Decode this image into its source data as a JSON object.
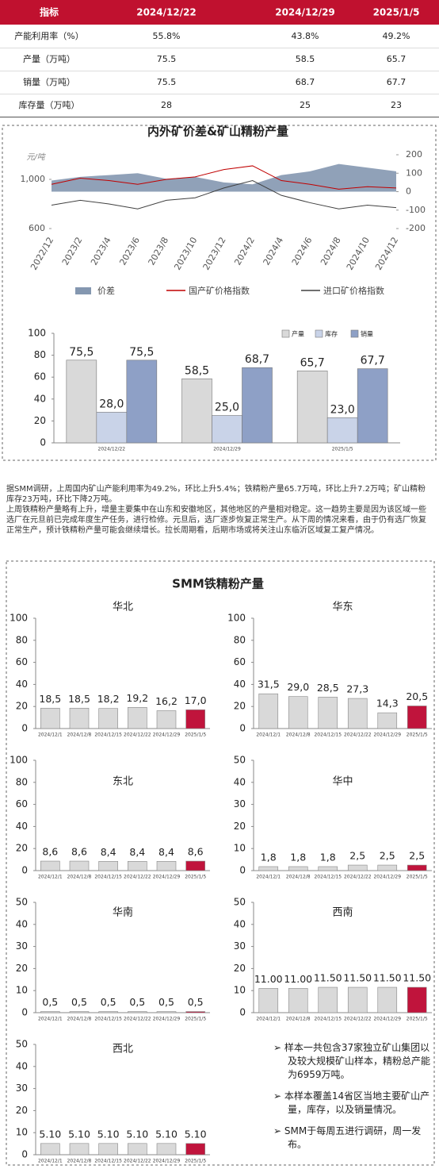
{
  "table": {
    "header": [
      "指标",
      "2024/12/22",
      "2024/12/29",
      "2025/1/5"
    ],
    "rows": [
      [
        "产能利用率（%）",
        "55.8%",
        "43.8%",
        "49.2%"
      ],
      [
        "产量（万吨）",
        "75.5",
        "58.5",
        "65.7"
      ],
      [
        "销量（万吨）",
        "75.5",
        "68.7",
        "67.7"
      ],
      [
        "库存量（万吨）",
        "28",
        "25",
        "23"
      ]
    ]
  },
  "chart_data": [
    {
      "type": "line",
      "title": "内外矿价差&矿山精粉产量",
      "y_label": "元/吨",
      "categories": [
        "2022/12",
        "2023/2",
        "2023/4",
        "2023/6",
        "2023/8",
        "2023/10",
        "2023/12",
        "2024/2",
        "2024/4",
        "2024/6",
        "2024/8",
        "2024/10",
        "2024/12"
      ],
      "ylim": [
        600,
        1200
      ],
      "yticks": [
        600,
        {
          "value": 1000,
          "label": "1,000"
        }
      ],
      "y2lim": [
        -200,
        200
      ],
      "y2ticks": [
        200,
        100,
        0,
        -100,
        -200
      ],
      "series": [
        {
          "name": "价差",
          "type": "area",
          "axis": "y2",
          "color": "#8497b0",
          "values": [
            60,
            80,
            90,
            100,
            70,
            80,
            50,
            40,
            90,
            110,
            150,
            130,
            110
          ]
        },
        {
          "name": "国产矿价格指数",
          "color": "#c00000",
          "values": [
            960,
            1010,
            990,
            960,
            1000,
            1020,
            1080,
            1110,
            990,
            960,
            920,
            940,
            930
          ]
        },
        {
          "name": "进口矿价格指数",
          "color": "#404040",
          "values": [
            790,
            830,
            800,
            760,
            830,
            850,
            930,
            990,
            870,
            810,
            760,
            790,
            770
          ]
        }
      ]
    },
    {
      "type": "bar",
      "categories": [
        "2024/12/22",
        "2024/12/29",
        "2025/1/5"
      ],
      "ylim": [
        0,
        100
      ],
      "yticks": [
        0,
        20,
        40,
        60,
        80,
        100
      ],
      "series": [
        {
          "name": "产量",
          "color": "#d9d9d9",
          "values": [
            75.5,
            58.5,
            65.7
          ],
          "value_labels": [
            "75,5",
            "58,5",
            "65,7"
          ]
        },
        {
          "name": "库存",
          "color": "#c9d3e8",
          "values": [
            28,
            25,
            23
          ],
          "value_labels": [
            "28,0",
            "25,0",
            "23,0"
          ]
        },
        {
          "name": "销量",
          "color": "#8ea0c6",
          "values": [
            75.5,
            68.7,
            67.7
          ],
          "value_labels": [
            "75,5",
            "68,7",
            "67,7"
          ]
        }
      ]
    },
    {
      "type": "bar",
      "title": "华北",
      "categories": [
        "2024/12/1",
        "2024/12/8",
        "2024/12/15",
        "2024/12/22",
        "2024/12/29",
        "2025/1/5"
      ],
      "ylim": [
        0,
        100
      ],
      "yticks": [
        0,
        20,
        40,
        60,
        80,
        100
      ],
      "colors": [
        "#d9d9d9",
        "#d9d9d9",
        "#d9d9d9",
        "#d9d9d9",
        "#d9d9d9",
        "#c0143c"
      ],
      "values": [
        18.5,
        18.5,
        18.2,
        19.2,
        16.2,
        17.0
      ],
      "value_labels": [
        "18,5",
        "18,5",
        "18,2",
        "19,2",
        "16,2",
        "17,0"
      ]
    },
    {
      "type": "bar",
      "title": "华东",
      "categories": [
        "2024/12/1",
        "2024/12/8",
        "2024/12/15",
        "2024/12/22",
        "2024/12/29",
        "2025/1/5"
      ],
      "ylim": [
        0,
        100
      ],
      "yticks": [
        0,
        20,
        40,
        60,
        80,
        100
      ],
      "colors": [
        "#d9d9d9",
        "#d9d9d9",
        "#d9d9d9",
        "#d9d9d9",
        "#d9d9d9",
        "#c0143c"
      ],
      "values": [
        31.5,
        29.0,
        28.5,
        27.3,
        14.3,
        20.5
      ],
      "value_labels": [
        "31,5",
        "29,0",
        "28,5",
        "27,3",
        "14,3",
        "20,5"
      ]
    },
    {
      "type": "bar",
      "title": "东北",
      "categories": [
        "2024/12/1",
        "2024/12/8",
        "2024/12/15",
        "2024/12/22",
        "2024/12/29",
        "2025/1/5"
      ],
      "ylim": [
        0,
        100
      ],
      "yticks": [
        0,
        20,
        40,
        60,
        80,
        100
      ],
      "colors": [
        "#d9d9d9",
        "#d9d9d9",
        "#d9d9d9",
        "#d9d9d9",
        "#d9d9d9",
        "#c0143c"
      ],
      "values": [
        8.6,
        8.6,
        8.4,
        8.4,
        8.4,
        8.6
      ],
      "value_labels": [
        "8,6",
        "8,6",
        "8,4",
        "8,4",
        "8,4",
        "8,6"
      ]
    },
    {
      "type": "bar",
      "title": "华中",
      "categories": [
        "2024/12/1",
        "2024/12/8",
        "2024/12/15",
        "2024/12/22",
        "2024/12/29",
        "2025/1/5"
      ],
      "ylim": [
        0,
        50
      ],
      "yticks": [
        0,
        10,
        20,
        30,
        40,
        50
      ],
      "colors": [
        "#d9d9d9",
        "#d9d9d9",
        "#d9d9d9",
        "#d9d9d9",
        "#d9d9d9",
        "#c0143c"
      ],
      "values": [
        1.8,
        1.8,
        1.8,
        2.5,
        2.5,
        2.5
      ],
      "value_labels": [
        "1,8",
        "1,8",
        "1,8",
        "2,5",
        "2,5",
        "2,5"
      ]
    },
    {
      "type": "bar",
      "title": "华南",
      "categories": [
        "2024/12/1",
        "2024/12/8",
        "2024/12/15",
        "2024/12/22",
        "2024/12/29",
        "2025/1/5"
      ],
      "ylim": [
        0,
        50
      ],
      "yticks": [
        0,
        10,
        20,
        30,
        40,
        50
      ],
      "colors": [
        "#d9d9d9",
        "#d9d9d9",
        "#d9d9d9",
        "#d9d9d9",
        "#d9d9d9",
        "#c0143c"
      ],
      "values": [
        0.5,
        0.5,
        0.5,
        0.5,
        0.5,
        0.5
      ],
      "value_labels": [
        "0,5",
        "0,5",
        "0,5",
        "0,5",
        "0,5",
        "0,5"
      ]
    },
    {
      "type": "bar",
      "title": "西南",
      "categories": [
        "2024/12/1",
        "2024/12/8",
        "2024/12/15",
        "2024/12/22",
        "2024/12/29",
        "2025/1/5"
      ],
      "ylim": [
        0,
        50
      ],
      "yticks": [
        0,
        10,
        20,
        30,
        40,
        50
      ],
      "colors": [
        "#d9d9d9",
        "#d9d9d9",
        "#d9d9d9",
        "#d9d9d9",
        "#d9d9d9",
        "#c0143c"
      ],
      "values": [
        11,
        11,
        11.5,
        11.5,
        11.5,
        11.5
      ],
      "value_labels": [
        "11.00",
        "11.00",
        "11.50",
        "11.50",
        "11.50",
        "11.50"
      ]
    },
    {
      "type": "bar",
      "title": "西北",
      "categories": [
        "2024/12/1",
        "2024/12/8",
        "2024/12/15",
        "2024/12/22",
        "2024/12/29",
        "2025/1/5"
      ],
      "ylim": [
        0,
        50
      ],
      "yticks": [
        0,
        10,
        20,
        30,
        40,
        50
      ],
      "colors": [
        "#d9d9d9",
        "#d9d9d9",
        "#d9d9d9",
        "#d9d9d9",
        "#d9d9d9",
        "#c0143c"
      ],
      "values": [
        5.1,
        5.1,
        5.1,
        5.1,
        5.1,
        5.1
      ],
      "value_labels": [
        "5.10",
        "5.10",
        "5.10",
        "5.10",
        "5.10",
        "5.10"
      ]
    }
  ],
  "commentary": [
    "据SMM调研，上周国内矿山产能利用率为49.2%，环比上升5.4%；铁精粉产量65.7万吨，环比上升7.2万吨；矿山精粉库存23万吨，环比下降2万吨。",
    "上周铁精粉产量略有上升，增量主要集中在山东和安徽地区，其他地区的产量相对稳定。这一趋势主要是因为该区域一些选厂在元旦前已完成年度生产任务，进行检修。元旦后，选厂逐步恢复正常生产。从下周的情况来看，由于仍有选厂恢复正常生产，预计铁精粉产量可能会继续增长。拉长周期看，后期市场或将关注山东临沂区域复工复产情况。"
  ],
  "smm_section": {
    "title": "SMM铁精粉产量",
    "notes": [
      "样本一共包含37家独立矿山集团以及较大规模矿山样本，精粉总产能为6959万吨。",
      "本样本覆盖14省区当地主要矿山产量，库存，以及销量情况。",
      "SMM于每周五进行调研，周一发布。"
    ]
  }
}
